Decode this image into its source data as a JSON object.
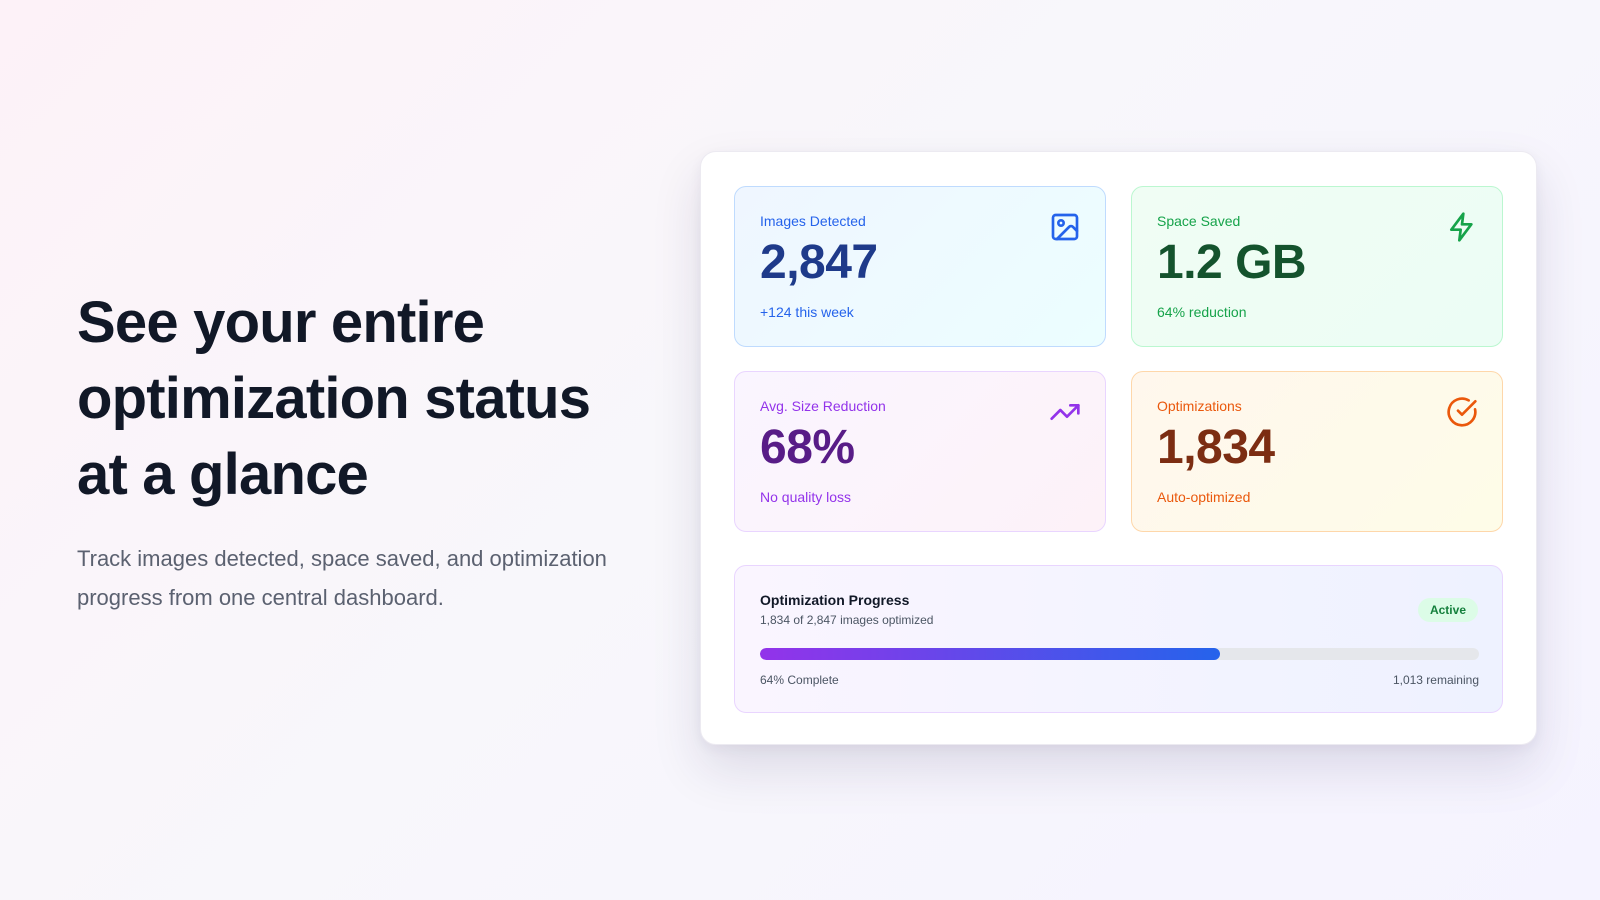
{
  "hero": {
    "title": "See your entire optimization status at a glance",
    "description": "Track images detected, space saved, and optimization progress from one central dashboard."
  },
  "cards": [
    {
      "label": "Images Detected",
      "value": "2,847",
      "sub": "+124 this week",
      "icon": "image-icon",
      "color": "#2563eb"
    },
    {
      "label": "Space Saved",
      "value": "1.2 GB",
      "sub": "64% reduction",
      "icon": "lightning-icon",
      "color": "#16a34a"
    },
    {
      "label": "Avg. Size Reduction",
      "value": "68%",
      "sub": "No quality loss",
      "icon": "trending-up-icon",
      "color": "#9333ea"
    },
    {
      "label": "Optimizations",
      "value": "1,834",
      "sub": "Auto-optimized",
      "icon": "check-circle-icon",
      "color": "#ea580c"
    }
  ],
  "progress": {
    "title": "Optimization Progress",
    "subtitle": "1,834 of 2,847 images optimized",
    "status": "Active",
    "complete_label": "64% Complete",
    "remaining_label": "1,013 remaining",
    "fraction": 0.64
  }
}
